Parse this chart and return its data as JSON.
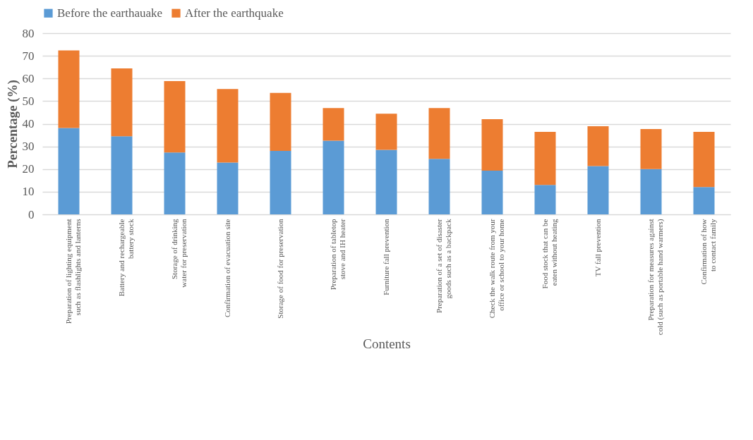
{
  "chart_data": {
    "type": "bar",
    "stacked": true,
    "xlabel": "Contents",
    "ylabel": "Percentage (%)",
    "categories": [
      "Preparation of lighting equipment such as flashlights and lanterns",
      "Battery and rechargeable battery stock",
      "Storage of drinking water for preservation",
      "Confirmation of evacuation site",
      "Storage of food for preservation",
      "Preparation of tabletop stove and IH heater",
      "Furniture fall prevention",
      "Preparation of a set of disaster goods such as a backpack",
      "Check the walk route from your office or school to your home",
      "Food stock that can be eaten without heating",
      "TV fall prevention",
      "Preparation for measures against cold (such as portable hand warmers)",
      "Confirmation of how to contact family"
    ],
    "series": [
      {
        "name": "Before the earthauake",
        "color": "#5b9bd5",
        "values": [
          38.1,
          34.5,
          27.3,
          22.9,
          28.0,
          32.5,
          28.5,
          24.5,
          19.3,
          13.0,
          21.3,
          20.0,
          12.1
        ]
      },
      {
        "name": "After the earthquake",
        "color": "#ed7d31",
        "values": [
          34.3,
          29.9,
          31.5,
          32.4,
          25.6,
          14.4,
          15.9,
          22.4,
          22.7,
          23.4,
          17.6,
          17.7,
          24.3
        ]
      }
    ],
    "ylim": [
      0,
      80
    ],
    "yticks": [
      0,
      10,
      20,
      30,
      40,
      50,
      60,
      70,
      80
    ],
    "grid": "y",
    "legend": "top"
  }
}
